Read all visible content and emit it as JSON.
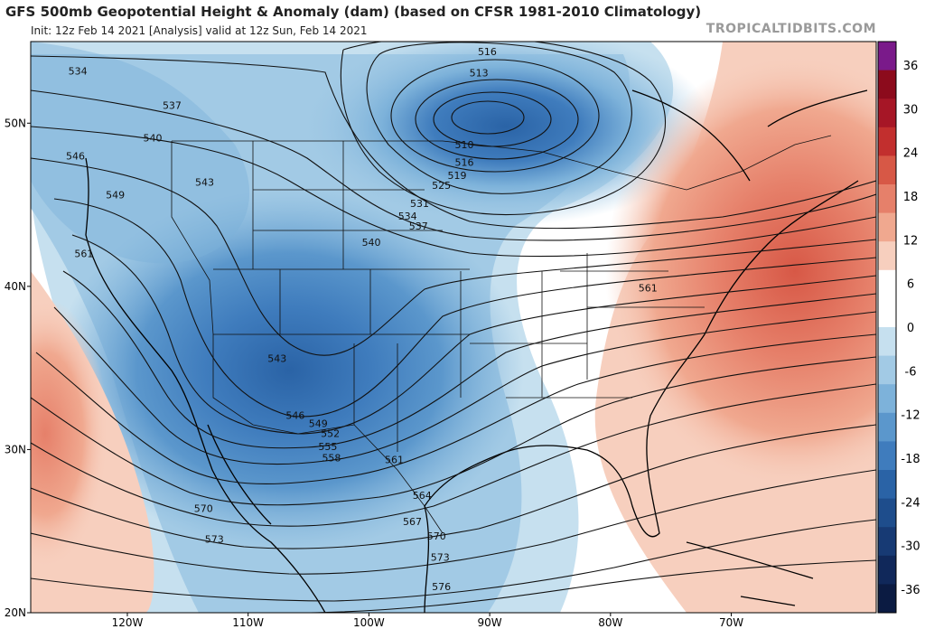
{
  "header": {
    "title": "GFS 500mb Geopotential Height & Anomaly (dam) (based on CFSR 1981-2010 Climatology)",
    "subtitle": "Init: 12z Feb 14 2021   [Analysis]   valid at 12z Sun, Feb 14 2021",
    "brand": "TROPICALTIDBITS.COM"
  },
  "map": {
    "projection": "lat-lon",
    "lon_range": [
      -128,
      -58
    ],
    "lat_range": [
      20,
      55
    ],
    "lat_ticks": [
      {
        "lat": 50,
        "label": "50N"
      },
      {
        "lat": 40,
        "label": "40N"
      },
      {
        "lat": 30,
        "label": "30N"
      },
      {
        "lat": 20,
        "label": "20N"
      }
    ],
    "lon_ticks": [
      {
        "lon": -120,
        "label": "120W"
      },
      {
        "lon": -110,
        "label": "110W"
      },
      {
        "lon": -100,
        "label": "100W"
      },
      {
        "lon": -90,
        "label": "90W"
      },
      {
        "lon": -80,
        "label": "80W"
      },
      {
        "lon": -70,
        "label": "70W"
      }
    ],
    "contour_labels": [
      {
        "value": "534",
        "lon": -124.1,
        "lat": 53.2
      },
      {
        "value": "537",
        "lon": -116.3,
        "lat": 51.1
      },
      {
        "value": "540",
        "lon": -117.9,
        "lat": 49.1
      },
      {
        "value": "546",
        "lon": -124.3,
        "lat": 48.0
      },
      {
        "value": "543",
        "lon": -113.6,
        "lat": 46.4
      },
      {
        "value": "549",
        "lon": -121.0,
        "lat": 45.6
      },
      {
        "value": "561",
        "lon": -123.6,
        "lat": 42.0
      },
      {
        "value": "540",
        "lon": -99.8,
        "lat": 42.7
      },
      {
        "value": "516",
        "lon": -90.2,
        "lat": 54.4
      },
      {
        "value": "513",
        "lon": -90.9,
        "lat": 53.1
      },
      {
        "value": "510",
        "lon": -92.1,
        "lat": 48.7
      },
      {
        "value": "516",
        "lon": -92.1,
        "lat": 47.6
      },
      {
        "value": "519",
        "lon": -92.7,
        "lat": 46.8
      },
      {
        "value": "525",
        "lon": -94.0,
        "lat": 46.2
      },
      {
        "value": "531",
        "lon": -95.8,
        "lat": 45.1
      },
      {
        "value": "534",
        "lon": -96.8,
        "lat": 44.3
      },
      {
        "value": "537",
        "lon": -95.9,
        "lat": 43.7
      },
      {
        "value": "561",
        "lon": -76.9,
        "lat": 39.9
      },
      {
        "value": "543",
        "lon": -107.6,
        "lat": 35.6
      },
      {
        "value": "546",
        "lon": -106.1,
        "lat": 32.1
      },
      {
        "value": "549",
        "lon": -104.2,
        "lat": 31.6
      },
      {
        "value": "552",
        "lon": -103.2,
        "lat": 31.0
      },
      {
        "value": "555",
        "lon": -103.4,
        "lat": 30.2
      },
      {
        "value": "558",
        "lon": -103.1,
        "lat": 29.5
      },
      {
        "value": "561",
        "lon": -97.9,
        "lat": 29.4
      },
      {
        "value": "564",
        "lon": -95.6,
        "lat": 27.2
      },
      {
        "value": "567",
        "lon": -96.4,
        "lat": 25.6
      },
      {
        "value": "570",
        "lon": -113.7,
        "lat": 26.4
      },
      {
        "value": "570",
        "lon": -94.4,
        "lat": 24.7
      },
      {
        "value": "573",
        "lon": -112.8,
        "lat": 24.5
      },
      {
        "value": "573",
        "lon": -94.1,
        "lat": 23.4
      },
      {
        "value": "576",
        "lon": -94.0,
        "lat": 21.6
      }
    ],
    "anomaly_features": [
      {
        "sign": "negative",
        "center_lon": -90.0,
        "center_lat": 49.0,
        "peak": -22
      },
      {
        "sign": "negative",
        "center_lon": -105.5,
        "center_lat": 34.5,
        "peak": -21
      },
      {
        "sign": "positive",
        "center_lon": -72.0,
        "center_lat": 40.5,
        "peak": 14
      },
      {
        "sign": "positive",
        "center_lon": -128.0,
        "center_lat": 32.0,
        "peak": 8
      }
    ]
  },
  "colorbar": {
    "ticks": [
      "36",
      "30",
      "24",
      "18",
      "12",
      "6",
      "0",
      "-6",
      "-12",
      "-18",
      "-24",
      "-30",
      "-36"
    ],
    "colors": [
      "#7a1a8a",
      "#8c0b1c",
      "#a61626",
      "#c22f2e",
      "#d75846",
      "#e6806a",
      "#f0a88f",
      "#f7cfbe",
      "#ffffff",
      "#ffffff",
      "#c6e0ef",
      "#a2cae5",
      "#7db2da",
      "#5b97cc",
      "#3f7cbd",
      "#2a63a6",
      "#1e4d8c",
      "#173a74",
      "#10285a",
      "#0b1b42"
    ]
  }
}
